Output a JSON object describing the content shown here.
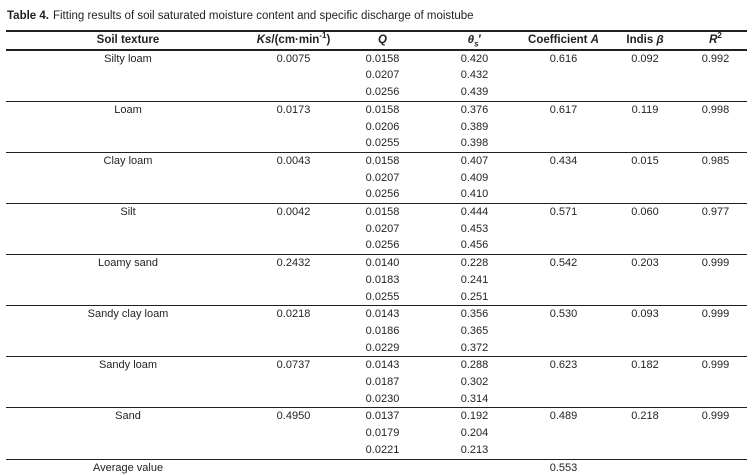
{
  "caption": {
    "label": "Table 4.",
    "text": "Fitting results of soil saturated moisture content and specific discharge of moistube"
  },
  "table": {
    "headers": {
      "soil": "Soil texture",
      "ks": {
        "var": "Ks",
        "unit": "/(cm·min",
        "sup": "-1",
        "close": ")"
      },
      "q": "Q",
      "theta": {
        "var": "θ",
        "sub": "s",
        "prime": "′"
      },
      "coefficient_a": {
        "text": "Coefficient ",
        "var": "A"
      },
      "beta": {
        "text": "Indis ",
        "var": "β"
      },
      "r2": {
        "var": "R",
        "sup": "2"
      }
    },
    "groups": [
      {
        "soil": "Silty loam",
        "ks": "0.0075",
        "rows": [
          [
            "0.0158",
            "0.420"
          ],
          [
            "0.0207",
            "0.432"
          ],
          [
            "0.0256",
            "0.439"
          ]
        ],
        "coefficient_a": "0.616",
        "beta": "0.092",
        "r2": "0.992"
      },
      {
        "soil": "Loam",
        "ks": "0.0173",
        "rows": [
          [
            "0.0158",
            "0.376"
          ],
          [
            "0.0206",
            "0.389"
          ],
          [
            "0.0255",
            "0.398"
          ]
        ],
        "coefficient_a": "0.617",
        "beta": "0.119",
        "r2": "0.998"
      },
      {
        "soil": "Clay loam",
        "ks": "0.0043",
        "rows": [
          [
            "0.0158",
            "0.407"
          ],
          [
            "0.0207",
            "0.409"
          ],
          [
            "0.0256",
            "0.410"
          ]
        ],
        "coefficient_a": "0.434",
        "beta": "0.015",
        "r2": "0.985"
      },
      {
        "soil": "Silt",
        "ks": "0.0042",
        "rows": [
          [
            "0.0158",
            "0.444"
          ],
          [
            "0.0207",
            "0.453"
          ],
          [
            "0.0256",
            "0.456"
          ]
        ],
        "coefficient_a": "0.571",
        "beta": "0.060",
        "r2": "0.977"
      },
      {
        "soil": "Loamy sand",
        "ks": "0.2432",
        "rows": [
          [
            "0.0140",
            "0.228"
          ],
          [
            "0.0183",
            "0.241"
          ],
          [
            "0.0255",
            "0.251"
          ]
        ],
        "coefficient_a": "0.542",
        "beta": "0.203",
        "r2": "0.999"
      },
      {
        "soil": "Sandy clay loam",
        "ks": "0.0218",
        "rows": [
          [
            "0.0143",
            "0.356"
          ],
          [
            "0.0186",
            "0.365"
          ],
          [
            "0.0229",
            "0.372"
          ]
        ],
        "coefficient_a": "0.530",
        "beta": "0.093",
        "r2": "0.999"
      },
      {
        "soil": "Sandy loam",
        "ks": "0.0737",
        "rows": [
          [
            "0.0143",
            "0.288"
          ],
          [
            "0.0187",
            "0.302"
          ],
          [
            "0.0230",
            "0.314"
          ]
        ],
        "coefficient_a": "0.623",
        "beta": "0.182",
        "r2": "0.999"
      },
      {
        "soil": "Sand",
        "ks": "0.4950",
        "rows": [
          [
            "0.0137",
            "0.192"
          ],
          [
            "0.0179",
            "0.204"
          ],
          [
            "0.0221",
            "0.213"
          ]
        ],
        "coefficient_a": "0.489",
        "beta": "0.218",
        "r2": "0.999"
      }
    ],
    "footer": {
      "label": "Average value",
      "coefficient_a": "0.553"
    }
  },
  "colors": {
    "text": "#231f20",
    "rule": "#231f20",
    "background": "#ffffff"
  }
}
